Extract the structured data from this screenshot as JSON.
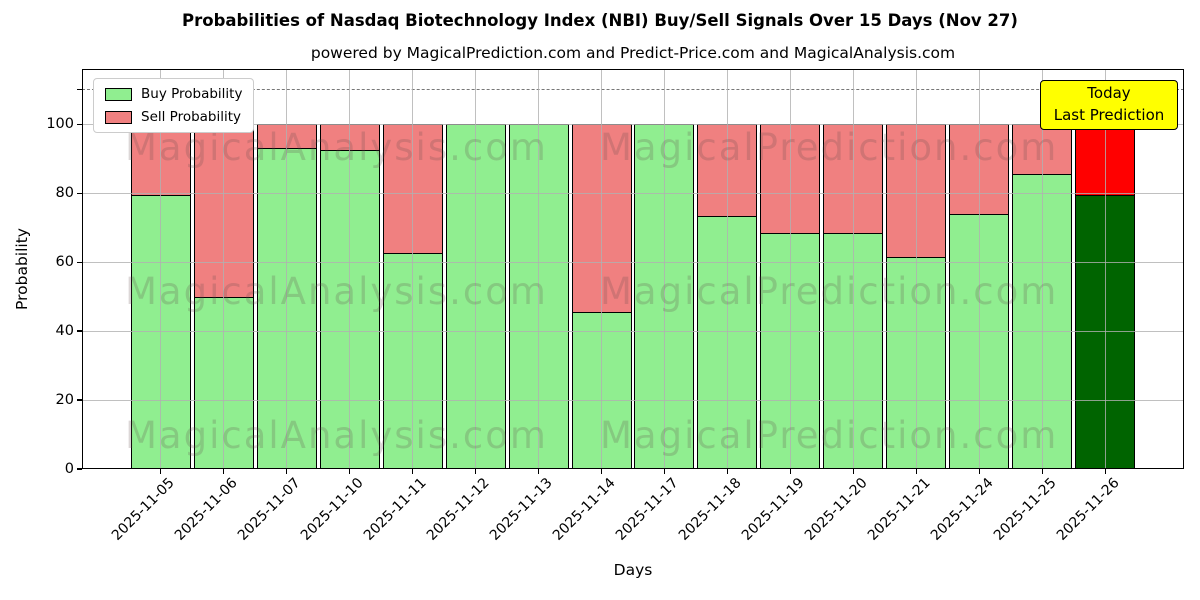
{
  "annotation": {
    "line1": "Today",
    "line2": "Last Prediction",
    "bg_color": "#ffff00"
  },
  "watermarks": [
    "MagicalAnalysis.com",
    "MagicalPrediction.com"
  ],
  "colors": {
    "grid": "rgba(176,176,176,0.8)",
    "dashed_line": "#777777",
    "bar_edge": "#000000",
    "watermark": "rgba(95,75,75,0.22)"
  },
  "chart_data": {
    "type": "bar",
    "stacked": true,
    "title": "Probabilities of Nasdaq Biotechnology Index (NBI) Buy/Sell Signals Over 15 Days (Nov 27)",
    "subtitle": "powered by MagicalPrediction.com and Predict-Price.com and MagicalAnalysis.com",
    "xlabel": "Days",
    "ylabel": "Probability",
    "categories": [
      "2025-11-05",
      "2025-11-06",
      "2025-11-07",
      "2025-11-10",
      "2025-11-11",
      "2025-11-12",
      "2025-11-13",
      "2025-11-14",
      "2025-11-17",
      "2025-11-18",
      "2025-11-19",
      "2025-11-20",
      "2025-11-21",
      "2025-11-24",
      "2025-11-25",
      "2025-11-26"
    ],
    "series": [
      {
        "name": "Buy Probability",
        "color": "#90ee90",
        "values": [
          79.5,
          50,
          93,
          92.5,
          62.5,
          100,
          100,
          45.5,
          100,
          73.5,
          68.5,
          68.5,
          61.5,
          74,
          85.5,
          79.5
        ]
      },
      {
        "name": "Sell Probability",
        "color": "#f08080",
        "values": [
          20.5,
          50,
          7,
          7.5,
          37.5,
          0,
          0,
          54.5,
          0,
          26.5,
          31.5,
          31.5,
          38.5,
          26,
          14.5,
          20.5
        ]
      }
    ],
    "today_bar": {
      "category": "2025-11-26",
      "index": 15,
      "buy_color": "#006400",
      "sell_color": "#ff0000"
    },
    "yticks": [
      0,
      20,
      40,
      60,
      80,
      100
    ],
    "ylim": [
      0,
      116
    ],
    "dashed_hline": 110,
    "grid": true,
    "legend_position": "upper left"
  }
}
